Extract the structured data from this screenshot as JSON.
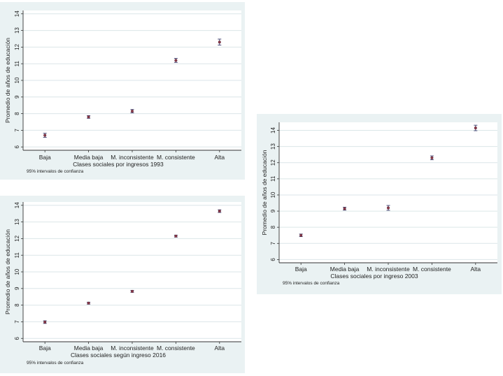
{
  "chart_data": [
    {
      "type": "scatter",
      "id": "1993",
      "categories": [
        "Baja",
        "Media baja",
        "M. inconsistente",
        "M. consistente",
        "Alta"
      ],
      "series": [
        {
          "values": [
            6.7,
            7.8,
            8.15,
            11.2,
            12.3
          ],
          "ci_low": [
            6.58,
            7.72,
            8.05,
            11.08,
            12.12
          ],
          "ci_high": [
            6.82,
            7.88,
            8.25,
            11.32,
            12.48
          ]
        }
      ],
      "xlabel": "Clases sociales por ingresos 1993",
      "ylabel": "Promedio de años de educación",
      "yticks": [
        6,
        7,
        8,
        9,
        10,
        11,
        12,
        13,
        14
      ],
      "ylim": [
        5.8,
        14.2
      ],
      "note": "95% intervalos de confianza",
      "grid": true,
      "colors": {
        "marker": "#8a3a4a",
        "ci": "#3a3a6a",
        "grid": "#dbe6e8",
        "plot_bg": "#ffffff",
        "panel_bg": "#eaf2f3"
      }
    },
    {
      "type": "scatter",
      "id": "2003",
      "categories": [
        "Baja",
        "Media baja",
        "M. inconsistente",
        "M. consistente",
        "Alta"
      ],
      "series": [
        {
          "values": [
            7.5,
            9.15,
            9.2,
            12.3,
            14.15
          ],
          "ci_low": [
            7.42,
            9.06,
            9.05,
            12.18,
            13.98
          ],
          "ci_high": [
            7.58,
            9.24,
            9.35,
            12.42,
            14.32
          ]
        }
      ],
      "xlabel": "Clases sociales por ingreso 2003",
      "ylabel": "Promedio de años de educación",
      "yticks": [
        6,
        7,
        8,
        9,
        10,
        11,
        12,
        13,
        14
      ],
      "ylim": [
        5.8,
        14.5
      ],
      "note": "95% intervalos de confianza",
      "grid": true,
      "colors": {
        "marker": "#8a3a4a",
        "ci": "#3a3a6a",
        "grid": "#dbe6e8",
        "plot_bg": "#ffffff",
        "panel_bg": "#eaf2f3"
      }
    },
    {
      "type": "scatter",
      "id": "2016",
      "categories": [
        "Baja",
        "Media baja",
        "M. inconsistente",
        "M. consistente",
        "Alta"
      ],
      "series": [
        {
          "values": [
            6.98,
            8.12,
            8.83,
            12.15,
            13.65
          ],
          "ci_low": [
            6.9,
            8.06,
            8.77,
            12.09,
            13.57
          ],
          "ci_high": [
            7.06,
            8.18,
            8.89,
            12.21,
            13.73
          ]
        }
      ],
      "xlabel": "Clases sociales según ingreso 2016",
      "ylabel": "Promedio de años de educación",
      "yticks": [
        6,
        7,
        8,
        9,
        10,
        11,
        12,
        13,
        14
      ],
      "ylim": [
        5.8,
        14.2
      ],
      "note": "95% intervalos de confianza",
      "grid": true,
      "colors": {
        "marker": "#8a3a4a",
        "ci": "#3a3a6a",
        "grid": "#dbe6e8",
        "plot_bg": "#ffffff",
        "panel_bg": "#eaf2f3"
      }
    }
  ]
}
